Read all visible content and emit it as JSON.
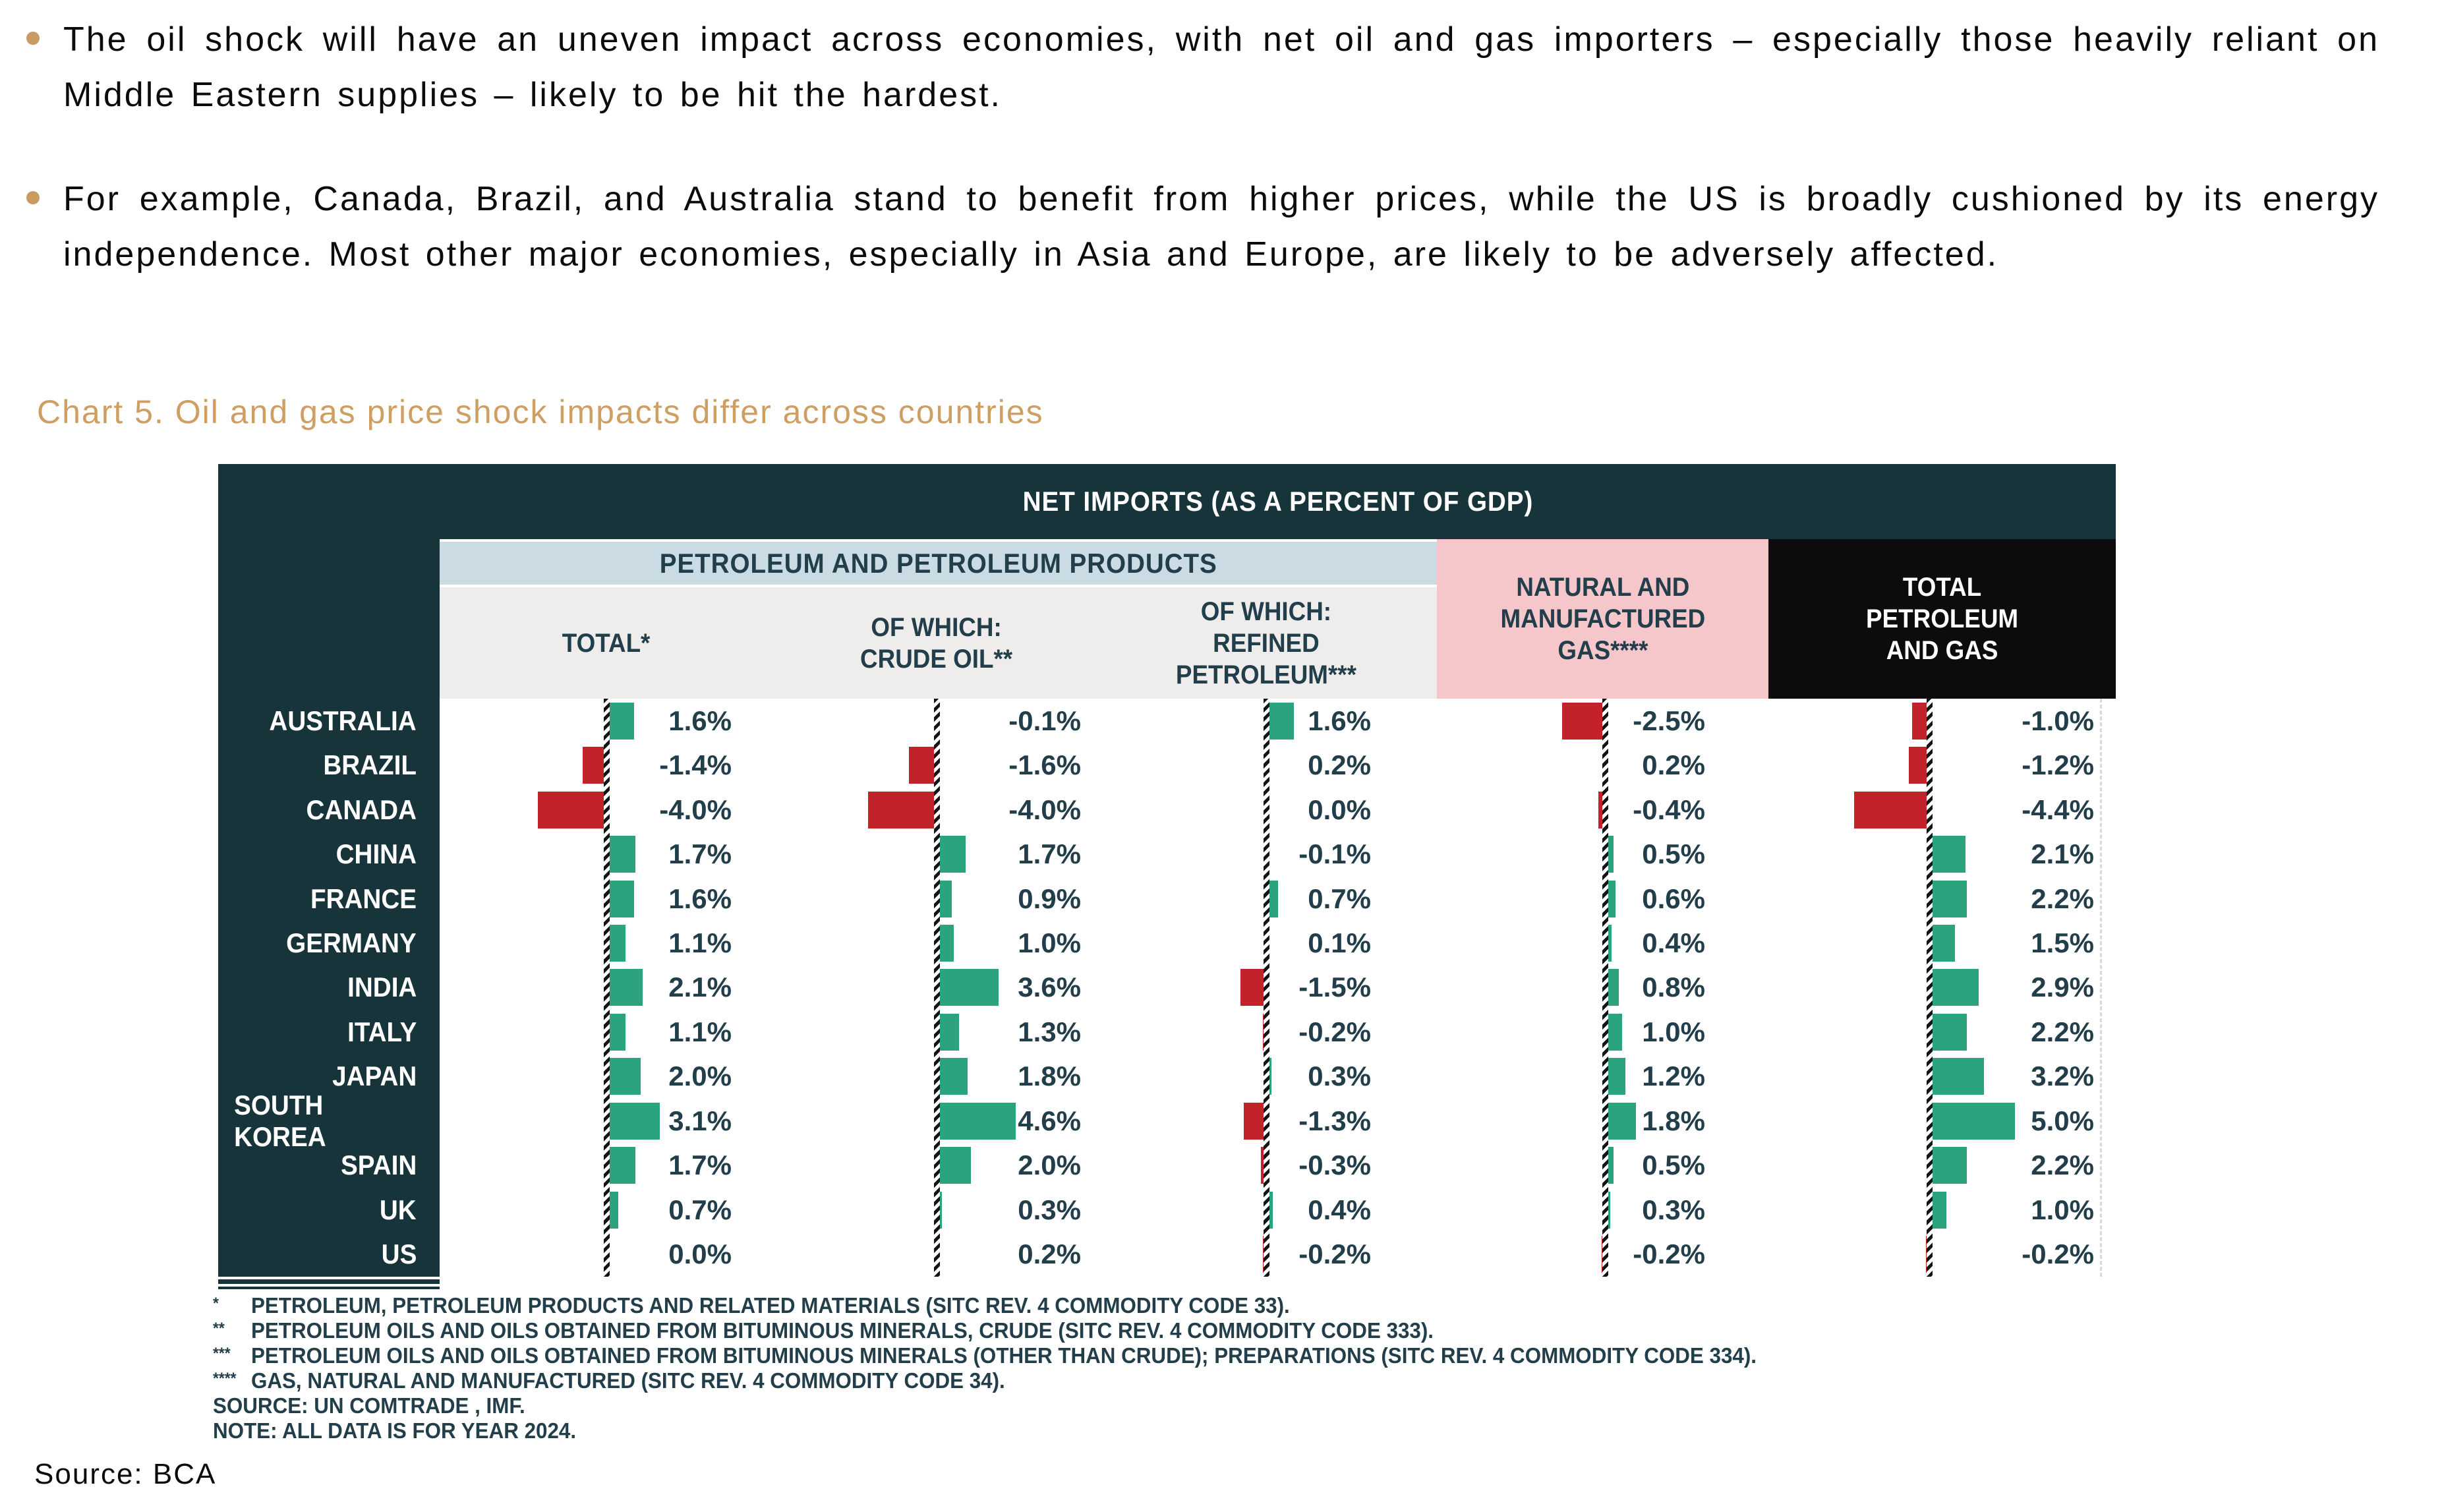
{
  "page": {
    "bullets": [
      "The oil shock will have an uneven impact across economies, with net oil and gas importers – especially those heavily reliant on Middle Eastern supplies – likely to be hit the hardest.",
      "For example, Canada, Brazil, and Australia stand to benefit from higher prices, while the US is broadly cushioned by its energy independence. Most other major economies, especially in Asia and Europe, are likely to be adversely affected."
    ],
    "chart_title": "Chart 5. Oil and gas price shock impacts differ across countries",
    "source_line": "Source: BCA"
  },
  "colors": {
    "tan_title": "#CE9E63",
    "tan_dot": "#C89B62",
    "table_teal": "#17343B",
    "header_text": "#213E4A",
    "positive_green": "#2BA37E",
    "negative_red": "#C2232A",
    "pink_header": "#F5C6CA",
    "light_blue_header": "#CADBE3",
    "light_gray_header": "#EFEDEB",
    "black_header": "#0C0C0E"
  },
  "chart_data": {
    "type": "bar",
    "title": "NET IMPORTS (AS A PERCENT OF GDP)",
    "group_header": "PETROLEUM AND PETROLEUM PRODUCTS",
    "unit": "%",
    "value_format": "one_decimal_percent",
    "orientation": "horizontal",
    "zero_line_style": "black-white hatched vertical line per column",
    "columns": [
      {
        "key": "total",
        "label": "TOTAL*"
      },
      {
        "key": "crude",
        "label": "OF WHICH:\nCRUDE OIL**"
      },
      {
        "key": "refined",
        "label": "OF WHICH:\nREFINED\nPETROLEUM***"
      },
      {
        "key": "gas",
        "label": "NATURAL AND\nMANUFACTURED\nGAS****"
      },
      {
        "key": "total_pg",
        "label": "TOTAL\nPETROLEUM\nAND GAS"
      }
    ],
    "rows": [
      {
        "country": "AUSTRALIA",
        "values": [
          1.6,
          -0.1,
          1.6,
          -2.5,
          -1.0
        ]
      },
      {
        "country": "BRAZIL",
        "values": [
          -1.4,
          -1.6,
          0.2,
          0.2,
          -1.2
        ]
      },
      {
        "country": "CANADA",
        "values": [
          -4.0,
          -4.0,
          0.0,
          -0.4,
          -4.4
        ]
      },
      {
        "country": "CHINA",
        "values": [
          1.7,
          1.7,
          -0.1,
          0.5,
          2.1
        ]
      },
      {
        "country": "FRANCE",
        "values": [
          1.6,
          0.9,
          0.7,
          0.6,
          2.2
        ]
      },
      {
        "country": "GERMANY",
        "values": [
          1.1,
          1.0,
          0.1,
          0.4,
          1.5
        ]
      },
      {
        "country": "INDIA",
        "values": [
          2.1,
          3.6,
          -1.5,
          0.8,
          2.9
        ]
      },
      {
        "country": "ITALY",
        "values": [
          1.1,
          1.3,
          -0.2,
          1.0,
          2.2
        ]
      },
      {
        "country": "JAPAN",
        "values": [
          2.0,
          1.8,
          0.3,
          1.2,
          3.2
        ]
      },
      {
        "country": "SOUTH KOREA",
        "values": [
          3.1,
          4.6,
          -1.3,
          1.8,
          5.0
        ]
      },
      {
        "country": "SPAIN",
        "values": [
          1.7,
          2.0,
          -0.3,
          0.5,
          2.2
        ]
      },
      {
        "country": "UK",
        "values": [
          0.7,
          0.3,
          0.4,
          0.3,
          1.0
        ]
      },
      {
        "country": "US",
        "values": [
          0.0,
          0.2,
          -0.2,
          -0.2,
          -0.2
        ]
      }
    ],
    "footnotes": [
      {
        "marker": "*",
        "text": "PETROLEUM, PETROLEUM PRODUCTS AND RELATED MATERIALS (SITC REV. 4 COMMODITY CODE 33)."
      },
      {
        "marker": "**",
        "text": "PETROLEUM OILS AND OILS OBTAINED FROM BITUMINOUS MINERALS, CRUDE (SITC REV. 4 COMMODITY CODE 333)."
      },
      {
        "marker": "***",
        "text": "PETROLEUM OILS AND OILS OBTAINED FROM BITUMINOUS MINERALS (OTHER THAN CRUDE); PREPARATIONS (SITC REV. 4 COMMODITY CODE 334)."
      },
      {
        "marker": "****",
        "text": "GAS, NATURAL AND MANUFACTURED (SITC REV. 4 COMMODITY CODE 34)."
      }
    ],
    "source_note": "SOURCE: UN COMTRADE , IMF.",
    "data_note": "NOTE: ALL DATA IS FOR YEAR 2024."
  }
}
